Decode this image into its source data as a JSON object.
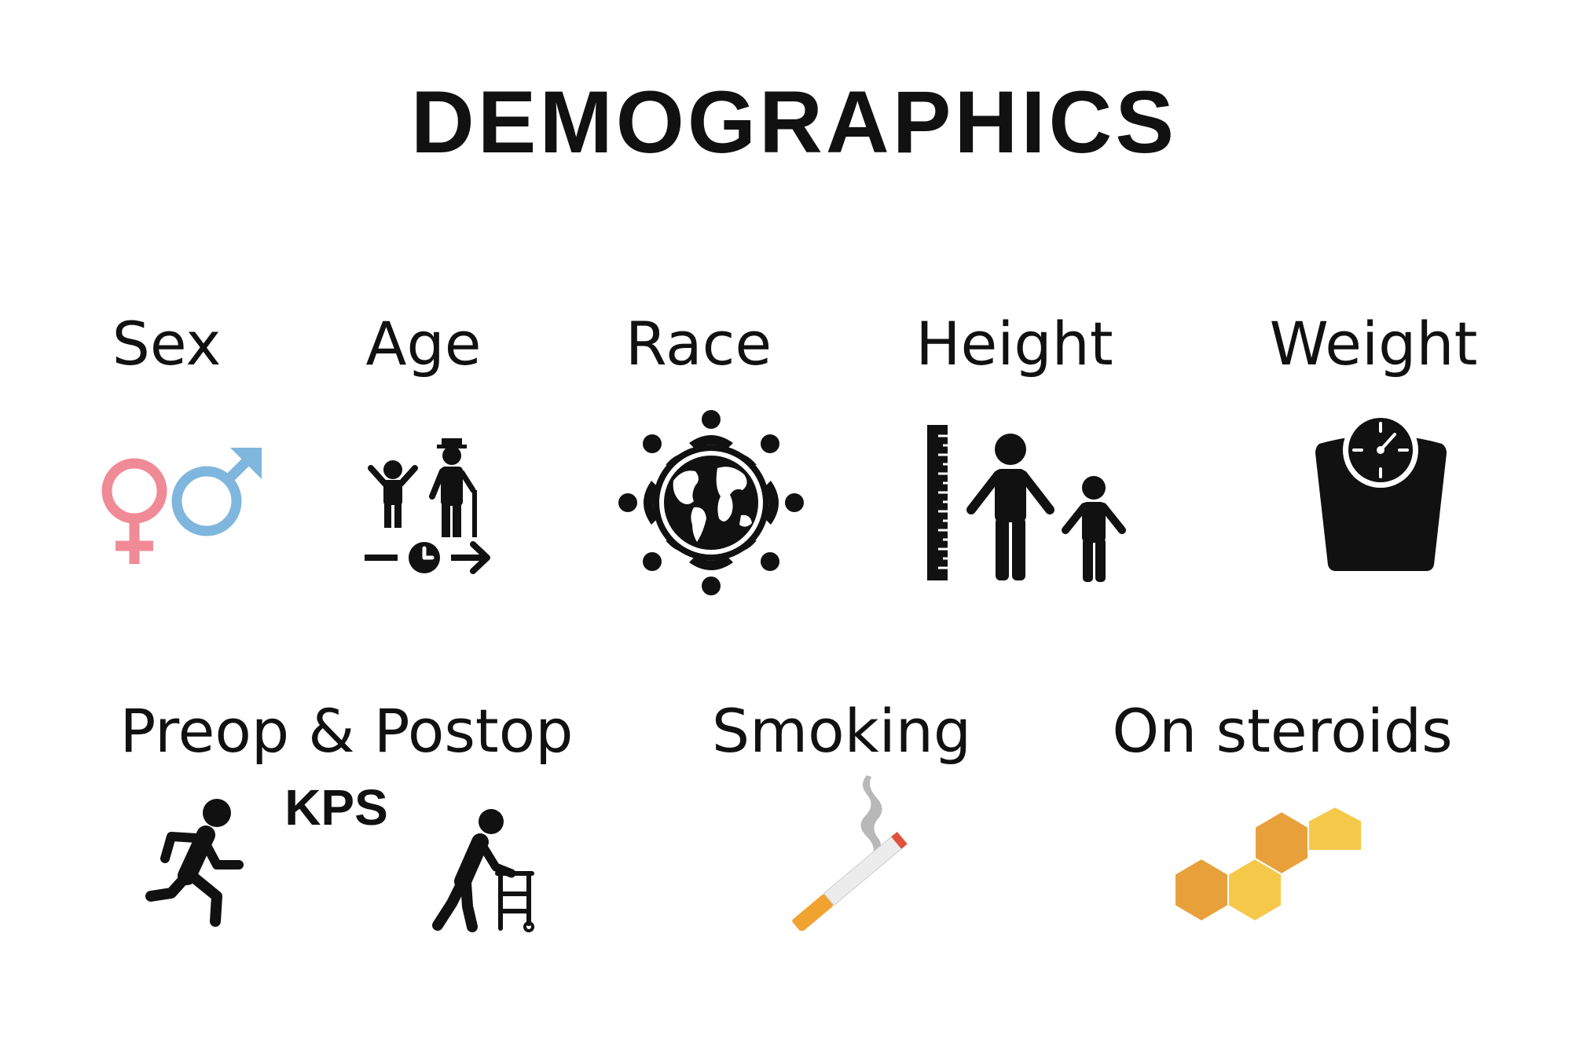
{
  "title": "DEMOGRAPHICS",
  "row1": [
    {
      "label": "Sex",
      "icon": "gender-symbols-icon"
    },
    {
      "label": "Age",
      "icon": "age-progression-icon"
    },
    {
      "label": "Race",
      "icon": "globe-people-icon"
    },
    {
      "label": "Height",
      "icon": "height-ruler-icon"
    },
    {
      "label": "Weight",
      "icon": "weight-scale-icon"
    }
  ],
  "row2": [
    {
      "label": "Preop & Postop",
      "sublabel": "KPS",
      "icons": [
        "running-person-icon",
        "walker-person-icon"
      ]
    },
    {
      "label": "Smoking",
      "icon": "cigarette-icon"
    },
    {
      "label": "On steroids",
      "icon": "steroid-molecule-icon"
    }
  ],
  "colors": {
    "female": "#f08a96",
    "male": "#7fb6de",
    "icon_black": "#111111",
    "hex_dark": "#e8a13a",
    "hex_light": "#f6c84a",
    "cigarette_filter": "#f0a331",
    "cigarette_ember": "#e0523a",
    "smoke": "#b8b8b8"
  }
}
